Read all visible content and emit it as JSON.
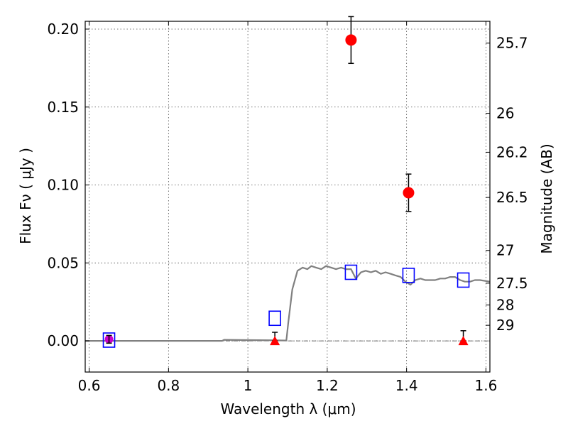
{
  "chart_data": {
    "type": "scatter",
    "xlabel": "Wavelength  λ (μm)",
    "ylabel": "Flux  Fν  ( μJy )",
    "y2label": "Magnitude (AB)",
    "xlim": [
      0.59,
      1.61
    ],
    "ylim": [
      -0.02,
      0.205
    ],
    "x_ticks": [
      0.6,
      0.8,
      1.0,
      1.2,
      1.4,
      1.6
    ],
    "x_tick_labels": [
      "0.6",
      "0.8",
      "1",
      "1.2",
      "1.4",
      "1.6"
    ],
    "y_ticks": [
      0.0,
      0.05,
      0.1,
      0.15,
      0.2
    ],
    "y_tick_labels": [
      "0.00",
      "0.05",
      "0.10",
      "0.15",
      "0.20"
    ],
    "mag_ticks": [
      {
        "flux": 0.191,
        "label": "25.7"
      },
      {
        "flux": 0.146,
        "label": "26"
      },
      {
        "flux": 0.121,
        "label": "26.2"
      },
      {
        "flux": 0.092,
        "label": "26.5"
      },
      {
        "flux": 0.058,
        "label": "27"
      },
      {
        "flux": 0.037,
        "label": "27.5"
      },
      {
        "flux": 0.023,
        "label": "28"
      },
      {
        "flux": 0.01,
        "label": "29"
      }
    ],
    "grid": true,
    "colors": {
      "detection": "#ff0000",
      "upper_limit": "#ff0000",
      "model": "#808080",
      "model_phot": "#0000ff",
      "optical_point": "#cc00cc",
      "error_bar": "#000000"
    },
    "series": [
      {
        "kind": "detections",
        "points": [
          {
            "x": 1.26,
            "y": 0.193,
            "yerr": 0.015
          },
          {
            "x": 1.405,
            "y": 0.095,
            "yerr": 0.012
          }
        ]
      },
      {
        "kind": "upper_limits",
        "points": [
          {
            "x": 1.068,
            "y": 0.0,
            "yerr_up": 0.0055
          },
          {
            "x": 1.543,
            "y": 0.0,
            "yerr_up": 0.0065
          }
        ]
      },
      {
        "kind": "optical_point",
        "points": [
          {
            "x": 0.65,
            "y": 0.001,
            "yerr": 0.0025
          }
        ]
      },
      {
        "kind": "model_photometry",
        "points": [
          {
            "x": 0.65,
            "y": 0.0005
          },
          {
            "x": 1.068,
            "y": 0.0145
          },
          {
            "x": 1.26,
            "y": 0.044
          },
          {
            "x": 1.405,
            "y": 0.042
          },
          {
            "x": 1.543,
            "y": 0.039
          }
        ]
      },
      {
        "kind": "model_spectrum",
        "x": [
          0.59,
          0.7,
          0.8,
          0.9,
          0.935,
          0.94,
          1.0,
          1.05,
          1.097,
          1.102,
          1.112,
          1.125,
          1.138,
          1.15,
          1.16,
          1.172,
          1.185,
          1.197,
          1.21,
          1.222,
          1.235,
          1.247,
          1.26,
          1.272,
          1.285,
          1.297,
          1.31,
          1.322,
          1.335,
          1.347,
          1.36,
          1.372,
          1.385,
          1.397,
          1.41,
          1.422,
          1.435,
          1.447,
          1.46,
          1.472,
          1.485,
          1.497,
          1.51,
          1.522,
          1.535,
          1.547,
          1.56,
          1.572,
          1.585,
          1.61
        ],
        "y": [
          0.0,
          0.0,
          0.0,
          0.0,
          0.0,
          0.0007,
          0.0005,
          0.0004,
          0.0002,
          0.012,
          0.033,
          0.045,
          0.047,
          0.046,
          0.048,
          0.047,
          0.046,
          0.048,
          0.047,
          0.046,
          0.047,
          0.046,
          0.046,
          0.04,
          0.044,
          0.045,
          0.044,
          0.045,
          0.043,
          0.044,
          0.043,
          0.042,
          0.041,
          0.038,
          0.036,
          0.039,
          0.04,
          0.039,
          0.039,
          0.039,
          0.04,
          0.04,
          0.041,
          0.041,
          0.039,
          0.038,
          0.038,
          0.039,
          0.039,
          0.038
        ]
      }
    ]
  }
}
